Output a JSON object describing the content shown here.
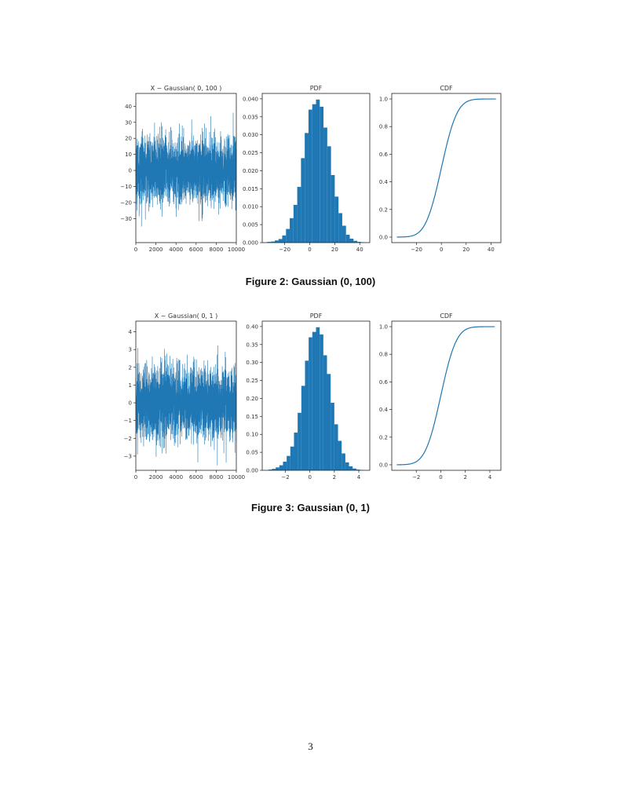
{
  "figures": [
    {
      "caption": "Figure 2: Gaussian (0, 100)",
      "chart_data": [
        {
          "type": "line",
          "title": "X ~ Gaussian( 0, 100 )",
          "xlim": [
            0,
            10000
          ],
          "ylim": [
            -45,
            48
          ],
          "xticks": [
            0,
            2000,
            4000,
            6000,
            8000,
            10000
          ],
          "xtick_labels": [
            "0",
            "2000",
            "4000",
            "6000",
            "8000",
            "10000"
          ],
          "yticks": [
            -30,
            -20,
            -10,
            0,
            10,
            20,
            30,
            40
          ],
          "ytick_labels": [
            "−30",
            "−20",
            "−10",
            "0",
            "10",
            "20",
            "30",
            "40"
          ],
          "n_samples": 10000,
          "sigma": 10,
          "color": "#1f77b4"
        },
        {
          "type": "bar",
          "title": "PDF",
          "xlim": [
            -38,
            48
          ],
          "ylim": [
            0,
            0.0415
          ],
          "xticks": [
            -20,
            0,
            20,
            40
          ],
          "xtick_labels": [
            "−20",
            "0",
            "20",
            "40"
          ],
          "yticks": [
            0,
            0.005,
            0.01,
            0.015,
            0.02,
            0.025,
            0.03,
            0.035,
            0.04
          ],
          "ytick_labels": [
            "0.000",
            "0.005",
            "0.010",
            "0.015",
            "0.020",
            "0.025",
            "0.030",
            "0.035",
            "0.040"
          ],
          "bin_edges": [
            -34,
            -31,
            -28,
            -25,
            -22,
            -19,
            -16,
            -13,
            -10,
            -7,
            -4,
            -1,
            2,
            5,
            8,
            11,
            14,
            17,
            20,
            23,
            26,
            29,
            32,
            35,
            38,
            41,
            44
          ],
          "values": [
            0.0002,
            0.0003,
            0.0006,
            0.001,
            0.002,
            0.0038,
            0.0068,
            0.0105,
            0.0155,
            0.0235,
            0.0305,
            0.037,
            0.0385,
            0.0398,
            0.0378,
            0.032,
            0.0268,
            0.0188,
            0.0128,
            0.0082,
            0.0047,
            0.0022,
            0.0011,
            0.0005,
            0.0002,
            0.0001
          ],
          "color": "#1f77b4"
        },
        {
          "type": "line",
          "title": "CDF",
          "xlim": [
            -40,
            48
          ],
          "ylim": [
            -0.04,
            1.04
          ],
          "xticks": [
            -20,
            0,
            20,
            40
          ],
          "xtick_labels": [
            "−20",
            "0",
            "20",
            "40"
          ],
          "yticks": [
            0,
            0.2,
            0.4,
            0.6,
            0.8,
            1.0
          ],
          "ytick_labels": [
            "0.0",
            "0.2",
            "0.4",
            "0.6",
            "0.8",
            "1.0"
          ],
          "x_range": [
            -36,
            44
          ],
          "mean": 0,
          "sigma": 10,
          "color": "#1f77b4"
        }
      ]
    },
    {
      "caption": "Figure 3: Gaussian (0, 1)",
      "chart_data": [
        {
          "type": "line",
          "title": "X ~ Gaussian( 0, 1 )",
          "xlim": [
            0,
            10000
          ],
          "ylim": [
            -3.8,
            4.6
          ],
          "xticks": [
            0,
            2000,
            4000,
            6000,
            8000,
            10000
          ],
          "xtick_labels": [
            "0",
            "2000",
            "4000",
            "6000",
            "8000",
            "10000"
          ],
          "yticks": [
            -3,
            -2,
            -1,
            0,
            1,
            2,
            3,
            4
          ],
          "ytick_labels": [
            "−3",
            "−2",
            "−1",
            "0",
            "1",
            "2",
            "3",
            "4"
          ],
          "n_samples": 10000,
          "sigma": 1,
          "color": "#1f77b4"
        },
        {
          "type": "bar",
          "title": "PDF",
          "xlim": [
            -3.9,
            4.9
          ],
          "ylim": [
            0,
            0.415
          ],
          "xticks": [
            -2,
            0,
            2,
            4
          ],
          "xtick_labels": [
            "−2",
            "0",
            "2",
            "4"
          ],
          "yticks": [
            0,
            0.05,
            0.1,
            0.15,
            0.2,
            0.25,
            0.3,
            0.35,
            0.4
          ],
          "ytick_labels": [
            "0.00",
            "0.05",
            "0.10",
            "0.15",
            "0.20",
            "0.25",
            "0.30",
            "0.35",
            "0.40"
          ],
          "bin_edges": [
            -3.4,
            -3.1,
            -2.8,
            -2.5,
            -2.2,
            -1.9,
            -1.6,
            -1.3,
            -1.0,
            -0.7,
            -0.4,
            -0.1,
            0.2,
            0.5,
            0.8,
            1.1,
            1.4,
            1.7,
            2.0,
            2.3,
            2.6,
            2.9,
            3.2,
            3.5,
            3.8,
            4.1,
            4.4
          ],
          "values": [
            0.002,
            0.004,
            0.008,
            0.014,
            0.024,
            0.04,
            0.066,
            0.105,
            0.16,
            0.235,
            0.305,
            0.37,
            0.385,
            0.398,
            0.378,
            0.32,
            0.268,
            0.188,
            0.128,
            0.082,
            0.047,
            0.022,
            0.011,
            0.005,
            0.002,
            0.001
          ],
          "color": "#1f77b4"
        },
        {
          "type": "line",
          "title": "CDF",
          "xlim": [
            -4.0,
            4.9
          ],
          "ylim": [
            -0.04,
            1.04
          ],
          "xticks": [
            -2,
            0,
            2,
            4
          ],
          "xtick_labels": [
            "−2",
            "0",
            "2",
            "4"
          ],
          "yticks": [
            0,
            0.2,
            0.4,
            0.6,
            0.8,
            1.0
          ],
          "ytick_labels": [
            "0.0",
            "0.2",
            "0.4",
            "0.6",
            "0.8",
            "1.0"
          ],
          "x_range": [
            -3.6,
            4.4
          ],
          "mean": 0,
          "sigma": 1,
          "color": "#1f77b4"
        }
      ]
    }
  ],
  "page_number": "3"
}
